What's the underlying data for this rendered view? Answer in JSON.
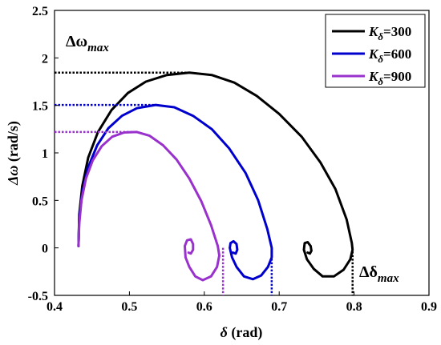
{
  "chart_data": {
    "type": "line",
    "xlabel": "δ (rad)",
    "xlabel_parts": {
      "symbol": "δ",
      "rest": " (rad)"
    },
    "ylabel": "Δω (rad/s)",
    "ylabel_parts": {
      "symbol": "Δω",
      "rest": " (rad/s)"
    },
    "xlim": [
      0.4,
      0.9
    ],
    "ylim": [
      -0.5,
      2.5
    ],
    "xticks": [
      0.4,
      0.5,
      0.6,
      0.7,
      0.8,
      0.9
    ],
    "yticks": [
      -0.5,
      0,
      0.5,
      1,
      1.5,
      2,
      2.5
    ],
    "xtick_labels": [
      "0.4",
      "0.5",
      "0.6",
      "0.7",
      "0.8",
      "0.9"
    ],
    "ytick_labels": [
      "-0.5",
      "0",
      "0.5",
      "1",
      "1.5",
      "2",
      "2.5"
    ],
    "grid": false,
    "legend_position": "top-right",
    "annotations": [
      {
        "text": "Δω",
        "sub": "max",
        "anchor": "top-left"
      },
      {
        "text": "Δδ",
        "sub": "max",
        "anchor": "bottom-right"
      }
    ],
    "series": [
      {
        "name": "Kδ=300",
        "label_main": "K",
        "label_sub": "δ",
        "label_value": "=300",
        "color": "#000000",
        "points": [
          [
            0.432,
            0.02
          ],
          [
            0.433,
            0.35
          ],
          [
            0.437,
            0.65
          ],
          [
            0.445,
            0.95
          ],
          [
            0.458,
            1.22
          ],
          [
            0.476,
            1.45
          ],
          [
            0.498,
            1.63
          ],
          [
            0.522,
            1.75
          ],
          [
            0.55,
            1.82
          ],
          [
            0.58,
            1.845
          ],
          [
            0.61,
            1.82
          ],
          [
            0.64,
            1.74
          ],
          [
            0.67,
            1.6
          ],
          [
            0.7,
            1.41
          ],
          [
            0.73,
            1.17
          ],
          [
            0.755,
            0.9
          ],
          [
            0.775,
            0.62
          ],
          [
            0.79,
            0.3
          ],
          [
            0.797,
            0.05
          ],
          [
            0.798,
            -0.02
          ],
          [
            0.795,
            -0.12
          ],
          [
            0.786,
            -0.23
          ],
          [
            0.773,
            -0.3
          ],
          [
            0.758,
            -0.3
          ],
          [
            0.746,
            -0.22
          ],
          [
            0.737,
            -0.12
          ],
          [
            0.733,
            -0.02
          ],
          [
            0.734,
            0.05
          ],
          [
            0.738,
            0.06
          ],
          [
            0.742,
            0.02
          ],
          [
            0.743,
            -0.03
          ],
          [
            0.741,
            -0.06
          ],
          [
            0.738,
            -0.05
          ]
        ],
        "max_omega": 1.845,
        "max_delta": 0.798
      },
      {
        "name": "Kδ=600",
        "label_main": "K",
        "label_sub": "δ",
        "label_value": "=600",
        "color": "#0000cd",
        "points": [
          [
            0.432,
            0.02
          ],
          [
            0.433,
            0.3
          ],
          [
            0.437,
            0.58
          ],
          [
            0.445,
            0.85
          ],
          [
            0.457,
            1.08
          ],
          [
            0.472,
            1.26
          ],
          [
            0.49,
            1.39
          ],
          [
            0.51,
            1.47
          ],
          [
            0.535,
            1.505
          ],
          [
            0.56,
            1.48
          ],
          [
            0.585,
            1.39
          ],
          [
            0.61,
            1.25
          ],
          [
            0.633,
            1.05
          ],
          [
            0.655,
            0.79
          ],
          [
            0.672,
            0.5
          ],
          [
            0.684,
            0.2
          ],
          [
            0.69,
            0.0
          ],
          [
            0.69,
            -0.1
          ],
          [
            0.685,
            -0.2
          ],
          [
            0.676,
            -0.29
          ],
          [
            0.665,
            -0.33
          ],
          [
            0.653,
            -0.3
          ],
          [
            0.643,
            -0.2
          ],
          [
            0.637,
            -0.1
          ],
          [
            0.634,
            0.0
          ],
          [
            0.635,
            0.05
          ],
          [
            0.639,
            0.07
          ],
          [
            0.643,
            0.04
          ],
          [
            0.644,
            -0.02
          ],
          [
            0.642,
            -0.06
          ],
          [
            0.638,
            -0.05
          ]
        ],
        "max_omega": 1.505,
        "max_delta": 0.69
      },
      {
        "name": "Kδ=900",
        "label_main": "K",
        "label_sub": "δ",
        "label_value": "=900",
        "color": "#9932cc",
        "points": [
          [
            0.432,
            0.02
          ],
          [
            0.433,
            0.25
          ],
          [
            0.436,
            0.5
          ],
          [
            0.442,
            0.73
          ],
          [
            0.451,
            0.92
          ],
          [
            0.463,
            1.07
          ],
          [
            0.477,
            1.17
          ],
          [
            0.493,
            1.215
          ],
          [
            0.51,
            1.22
          ],
          [
            0.527,
            1.18
          ],
          [
            0.545,
            1.08
          ],
          [
            0.563,
            0.93
          ],
          [
            0.58,
            0.73
          ],
          [
            0.596,
            0.49
          ],
          [
            0.609,
            0.24
          ],
          [
            0.618,
            0.02
          ],
          [
            0.62,
            -0.08
          ],
          [
            0.617,
            -0.2
          ],
          [
            0.609,
            -0.3
          ],
          [
            0.598,
            -0.34
          ],
          [
            0.588,
            -0.3
          ],
          [
            0.58,
            -0.2
          ],
          [
            0.575,
            -0.1
          ],
          [
            0.574,
            0.02
          ],
          [
            0.577,
            0.08
          ],
          [
            0.582,
            0.09
          ],
          [
            0.585,
            0.04
          ],
          [
            0.585,
            -0.02
          ],
          [
            0.582,
            -0.06
          ],
          [
            0.579,
            -0.05
          ]
        ],
        "max_omega": 1.22,
        "max_delta": 0.625
      }
    ]
  }
}
